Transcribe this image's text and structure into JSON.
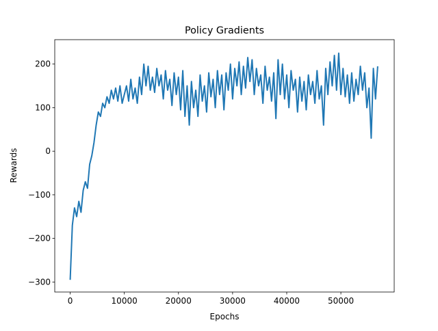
{
  "chart_data": {
    "type": "line",
    "title": "Policy Gradients",
    "xlabel": "Epochs",
    "ylabel": "Rewards",
    "color": "#1f77b4",
    "x": [
      0,
      400,
      800,
      1200,
      1600,
      2000,
      2400,
      2800,
      3200,
      3600,
      4000,
      4400,
      4800,
      5200,
      5600,
      6000,
      6400,
      6800,
      7200,
      7600,
      8000,
      8400,
      8800,
      9200,
      9600,
      10000,
      10400,
      10800,
      11200,
      11600,
      12000,
      12400,
      12800,
      13200,
      13600,
      14000,
      14400,
      14800,
      15200,
      15600,
      16000,
      16400,
      16800,
      17200,
      17600,
      18000,
      18400,
      18800,
      19200,
      19600,
      20000,
      20400,
      20800,
      21200,
      21600,
      22000,
      22400,
      22800,
      23200,
      23600,
      24000,
      24400,
      24800,
      25200,
      25600,
      26000,
      26400,
      26800,
      27200,
      27600,
      28000,
      28400,
      28800,
      29200,
      29600,
      30000,
      30400,
      30800,
      31200,
      31600,
      32000,
      32400,
      32800,
      33200,
      33600,
      34000,
      34400,
      34800,
      35200,
      35600,
      36000,
      36400,
      36800,
      37200,
      37600,
      38000,
      38400,
      38800,
      39200,
      39600,
      40000,
      40400,
      40800,
      41200,
      41600,
      42000,
      42400,
      42800,
      43200,
      43600,
      44000,
      44400,
      44800,
      45200,
      45600,
      46000,
      46400,
      46800,
      47200,
      47600,
      48000,
      48400,
      48800,
      49200,
      49600,
      50000,
      50400,
      50800,
      51200,
      51600,
      52000,
      52400,
      52800,
      53200,
      53600,
      54000,
      54400,
      54800,
      55200,
      55600,
      56000,
      56400,
      56800
    ],
    "values": [
      -295,
      -170,
      -130,
      -150,
      -115,
      -140,
      -90,
      -70,
      -85,
      -30,
      -10,
      20,
      60,
      90,
      80,
      110,
      100,
      125,
      110,
      140,
      120,
      145,
      115,
      150,
      110,
      130,
      150,
      115,
      165,
      120,
      145,
      110,
      170,
      130,
      200,
      150,
      195,
      140,
      170,
      135,
      190,
      150,
      175,
      120,
      185,
      140,
      165,
      105,
      180,
      130,
      170,
      95,
      185,
      80,
      150,
      60,
      160,
      100,
      140,
      80,
      175,
      115,
      150,
      90,
      180,
      125,
      165,
      100,
      185,
      130,
      175,
      95,
      180,
      140,
      200,
      120,
      190,
      150,
      205,
      130,
      195,
      145,
      215,
      160,
      210,
      130,
      190,
      150,
      175,
      110,
      195,
      140,
      170,
      115,
      180,
      75,
      210,
      130,
      200,
      120,
      175,
      100,
      185,
      140,
      165,
      90,
      170,
      115,
      160,
      95,
      175,
      130,
      160,
      110,
      185,
      120,
      150,
      60,
      190,
      130,
      205,
      150,
      220,
      140,
      225,
      130,
      190,
      125,
      175,
      110,
      180,
      115,
      165,
      130,
      195,
      140,
      180,
      100,
      145,
      30,
      190,
      120,
      195
    ],
    "xlim": [
      -2850,
      59850
    ],
    "xticks": [
      0,
      10000,
      20000,
      30000,
      40000,
      50000
    ],
    "ylim": [
      -323,
      256
    ],
    "yticks": [
      {
        "value": -300,
        "label": "−300"
      },
      {
        "value": -200,
        "label": "−200"
      },
      {
        "value": -100,
        "label": "−100"
      },
      0,
      100,
      200
    ]
  }
}
